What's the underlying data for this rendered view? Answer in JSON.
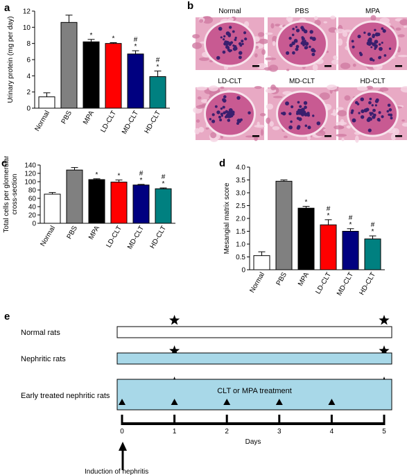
{
  "panels": {
    "a": "a",
    "b": "b",
    "c": "c",
    "d": "d",
    "e": "e"
  },
  "chart_data": [
    {
      "type": "bar",
      "panel": "a",
      "ylabel": "Urinary protein (mg per day)",
      "ylim": [
        0,
        12
      ],
      "yticks": [
        "0",
        "2",
        "4",
        "6",
        "8",
        "10",
        "12"
      ],
      "categories": [
        "Normal",
        "PBS",
        "MPA",
        "LD-CLT",
        "MD-CLT",
        "HD-CLT"
      ],
      "values": [
        1.4,
        10.6,
        8.2,
        8.0,
        6.7,
        3.9
      ],
      "errors": [
        0.5,
        0.9,
        0.3,
        0.1,
        0.4,
        0.7
      ],
      "colors": [
        "#ffffff",
        "#808080",
        "#000000",
        "#ff0000",
        "#000080",
        "#008080"
      ],
      "marks": [
        [],
        [],
        [
          "*"
        ],
        [
          "*"
        ],
        [
          "*",
          "#"
        ],
        [
          "*",
          "#"
        ]
      ]
    },
    {
      "type": "bar",
      "panel": "c",
      "ylabel": "Total cells per glomerular cross-section",
      "ylabel_lines": [
        "Total cells per glomerular",
        "cross-section"
      ],
      "ylim": [
        0,
        140
      ],
      "yticks": [
        "0",
        "20",
        "40",
        "60",
        "80",
        "100",
        "120",
        "140"
      ],
      "categories": [
        "Normal",
        "PBS",
        "MPA",
        "LD-CLT",
        "MD-CLT",
        "HD-CLT"
      ],
      "values": [
        70,
        128,
        105,
        99,
        92,
        83
      ],
      "errors": [
        4,
        6,
        2,
        5,
        1.5,
        2
      ],
      "colors": [
        "#ffffff",
        "#808080",
        "#000000",
        "#ff0000",
        "#000080",
        "#008080"
      ],
      "marks": [
        [],
        [],
        [
          "*"
        ],
        [
          "*"
        ],
        [
          "*",
          "#"
        ],
        [
          "*",
          "#"
        ]
      ]
    },
    {
      "type": "bar",
      "panel": "d",
      "ylabel": "Mesangial matrix score",
      "ylim": [
        0,
        4.0
      ],
      "yticks": [
        "0",
        "0.5",
        "1.0",
        "1.5",
        "2.0",
        "2.5",
        "3.0",
        "3.5",
        "4.0"
      ],
      "categories": [
        "Normal",
        "PBS",
        "MPA",
        "LD-CLT",
        "MD-CLT",
        "HD-CLT"
      ],
      "values": [
        0.55,
        3.45,
        2.4,
        1.75,
        1.5,
        1.2
      ],
      "errors": [
        0.15,
        0.05,
        0.07,
        0.2,
        0.1,
        0.12
      ],
      "colors": [
        "#ffffff",
        "#808080",
        "#000000",
        "#ff0000",
        "#000080",
        "#008080"
      ],
      "marks": [
        [],
        [],
        [
          "*"
        ],
        [
          "*",
          "#"
        ],
        [
          "*",
          "#"
        ],
        [
          "*",
          "#"
        ]
      ]
    }
  ],
  "histology": {
    "labels": [
      "Normal",
      "PBS",
      "MPA",
      "LD-CLT",
      "MD-CLT",
      "HD-CLT"
    ]
  },
  "timeline": {
    "rows": [
      {
        "label": "Normal rats",
        "fill": "#ffffff"
      },
      {
        "label": "Nephritic rats",
        "fill": "#a8d8e8"
      },
      {
        "label": "Early treated nephritic rats",
        "fill": "#a8d8e8"
      }
    ],
    "treatment_text": "CLT or MPA treatment",
    "days": [
      "0",
      "1",
      "2",
      "3",
      "4",
      "5"
    ],
    "axis_label": "Days",
    "induction": "Induction of nephritis",
    "star_days": [
      1,
      5
    ],
    "triangle_days": [
      0,
      1,
      2,
      3,
      4
    ]
  }
}
